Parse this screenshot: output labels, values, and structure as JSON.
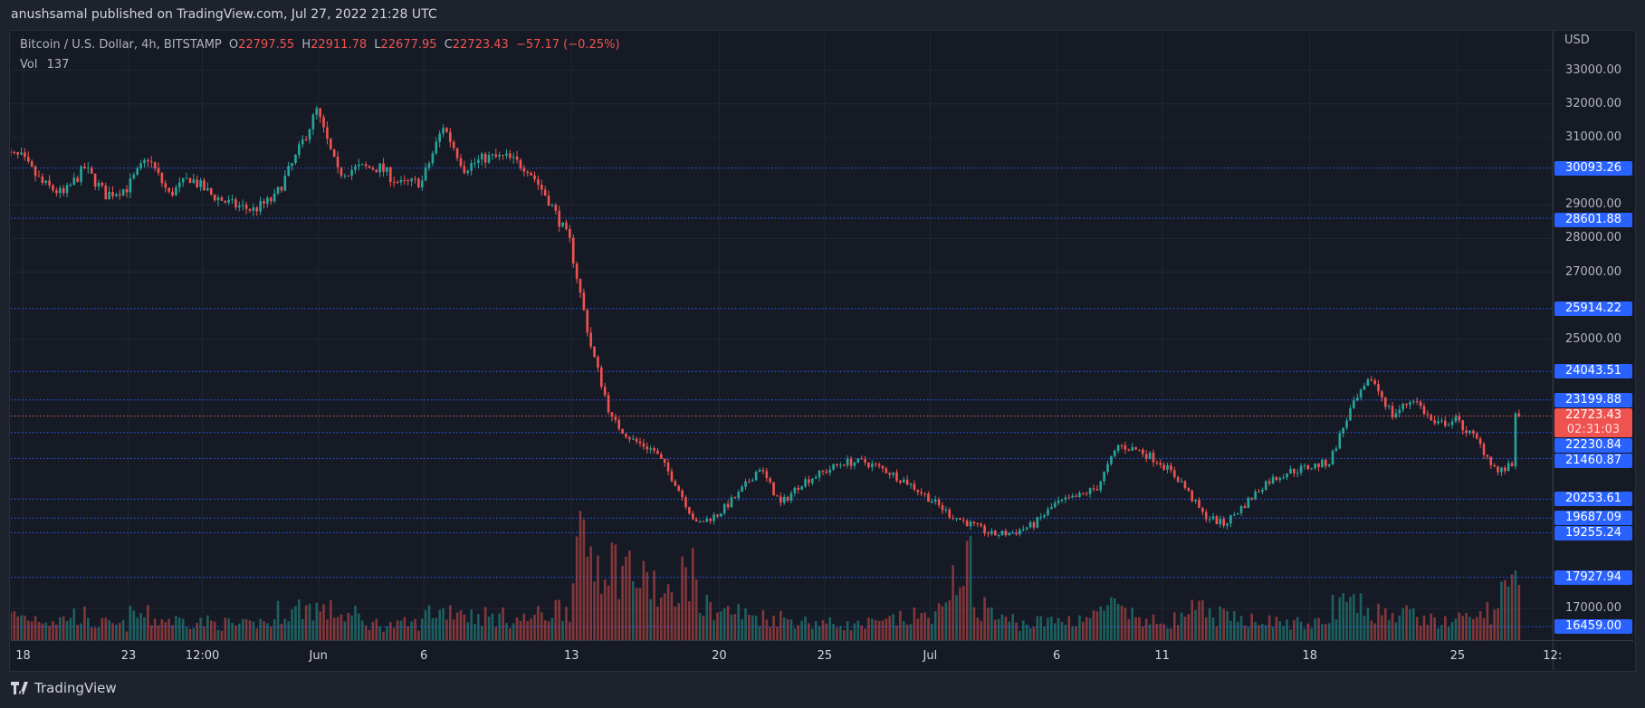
{
  "header": {
    "published": "anushsamal published on TradingView.com, Jul 27, 2022 21:28 UTC"
  },
  "legend": {
    "symbol": "Bitcoin / U.S. Dollar, 4h, BITSTAMP",
    "o_label": "O",
    "open": "22797.55",
    "h_label": "H",
    "high": "22911.78",
    "l_label": "L",
    "low": "22677.95",
    "c_label": "C",
    "close": "22723.43",
    "change": "−57.17 (−0.25%)",
    "vol_label": "Vol",
    "vol": "137"
  },
  "price_axis": {
    "currency": "USD",
    "ticks": [
      "33000.00",
      "32000.00",
      "31000.00",
      "29000.00",
      "28000.00",
      "27000.00",
      "25000.00",
      "17000.00"
    ],
    "levels": [
      "30093.26",
      "28601.88",
      "25914.22",
      "24043.51",
      "23199.88",
      "22230.84",
      "21460.87",
      "20253.61",
      "19687.09",
      "19255.24",
      "17927.94",
      "16459.00"
    ],
    "current_price": "22723.43",
    "countdown": "02:31:03"
  },
  "time_axis": {
    "labels": [
      "18",
      "23",
      "12:00",
      "Jun",
      "6",
      "13",
      "20",
      "25",
      "Jul",
      "6",
      "11",
      "18",
      "25",
      "12:"
    ]
  },
  "colors": {
    "up": "#26a69a",
    "down": "#ef5350",
    "level_line": "#2962ff",
    "background": "#161a25"
  },
  "footer": {
    "brand": "TradingView",
    "logo_icon": "tradingview-logo-icon"
  },
  "chart_data": {
    "type": "candlestick",
    "interval": "4h",
    "x_start": "May 17",
    "x_end": "Jul 27",
    "daily_closes": [
      30400,
      29630,
      29300,
      30100,
      29300,
      29500,
      30400,
      29300,
      29800,
      29300,
      29000,
      28850,
      29200,
      30400,
      31800,
      29950,
      30100,
      30100,
      29600,
      29700,
      31350,
      30100,
      30400,
      30400,
      30100,
      29150,
      27900,
      24800,
      22600,
      22000,
      21700,
      20750,
      19500,
      19800,
      20400,
      21200,
      20100,
      20750,
      21050,
      21350,
      21350,
      21100,
      20750,
      20300,
      19800,
      19500,
      19200,
      19250,
      19500,
      20100,
      20300,
      20600,
      21850,
      21700,
      21350,
      20750,
      19800,
      19500,
      20100,
      20750,
      21050,
      21200,
      21350,
      22900,
      23850,
      22750,
      23250,
      22450,
      22600,
      22000,
      21050,
      21350
    ],
    "daily_volume": [
      30,
      28,
      25,
      30,
      20,
      18,
      30,
      25,
      24,
      22,
      20,
      18,
      22,
      35,
      40,
      35,
      30,
      20,
      18,
      20,
      35,
      38,
      30,
      28,
      25,
      30,
      40,
      110,
      100,
      90,
      70,
      50,
      80,
      40,
      35,
      30,
      28,
      25,
      22,
      20,
      18,
      20,
      25,
      28,
      35,
      90,
      40,
      25,
      20,
      22,
      25,
      28,
      40,
      30,
      22,
      25,
      35,
      30,
      25,
      28,
      22,
      20,
      20,
      45,
      40,
      35,
      30,
      25,
      22,
      25,
      35,
      60
    ],
    "ylim": [
      16000,
      33500
    ]
  }
}
